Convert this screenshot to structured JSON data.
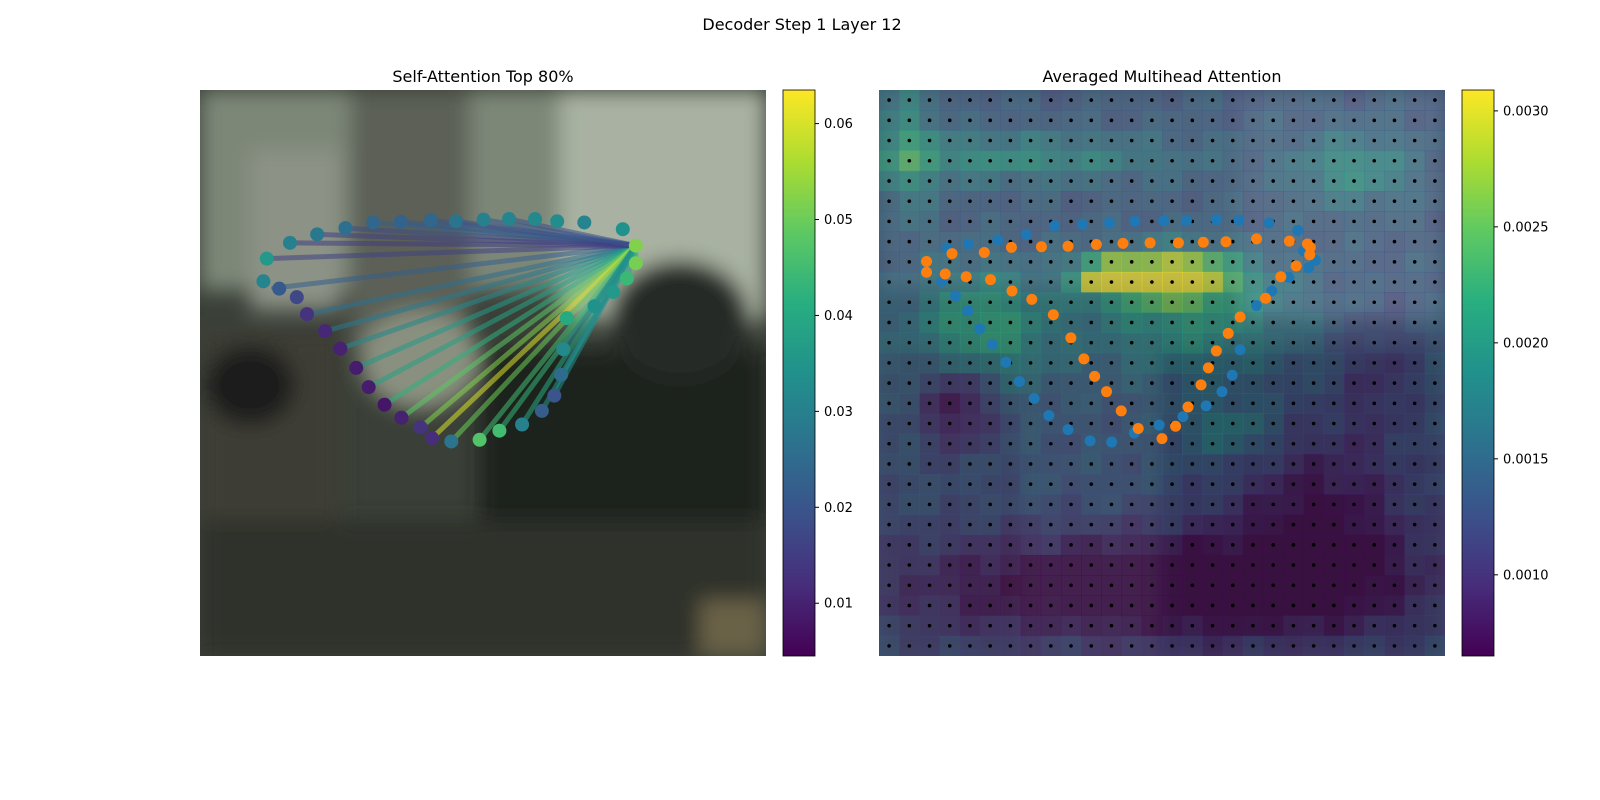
{
  "figure": {
    "title": "Decoder Step 1 Layer 12"
  },
  "chart_data": [
    {
      "type": "scatter",
      "title": "Self-Attention Top 80%",
      "description_of_marks": "contour keypoints colored by attention weight, with lines from the query point to the top-80% attended keypoints",
      "xlim": [
        0,
        1
      ],
      "ylim": [
        0,
        1
      ],
      "colorbar": {
        "ticks": [
          0.01,
          0.02,
          0.03,
          0.04,
          0.05,
          0.06
        ],
        "range": [
          0.0045,
          0.0635
        ],
        "cmap": "viridis"
      },
      "query_point": [
        0.77,
        0.725
      ],
      "points": [
        [
          0.118,
          0.702,
          0.036
        ],
        [
          0.159,
          0.73,
          0.03
        ],
        [
          0.207,
          0.745,
          0.028
        ],
        [
          0.257,
          0.756,
          0.026
        ],
        [
          0.306,
          0.766,
          0.024
        ],
        [
          0.355,
          0.767,
          0.023
        ],
        [
          0.408,
          0.77,
          0.024
        ],
        [
          0.452,
          0.768,
          0.027
        ],
        [
          0.501,
          0.771,
          0.03
        ],
        [
          0.546,
          0.772,
          0.031
        ],
        [
          0.592,
          0.772,
          0.032
        ],
        [
          0.631,
          0.768,
          0.033
        ],
        [
          0.679,
          0.766,
          0.031
        ],
        [
          0.747,
          0.754,
          0.034
        ],
        [
          0.77,
          0.725,
          0.052
        ],
        [
          0.77,
          0.694,
          0.051
        ],
        [
          0.754,
          0.667,
          0.044
        ],
        [
          0.73,
          0.643,
          0.036
        ],
        [
          0.697,
          0.618,
          0.034
        ],
        [
          0.648,
          0.597,
          0.04
        ],
        [
          0.642,
          0.542,
          0.032
        ],
        [
          0.638,
          0.497,
          0.025
        ],
        [
          0.626,
          0.46,
          0.02
        ],
        [
          0.604,
          0.433,
          0.022
        ],
        [
          0.569,
          0.409,
          0.03
        ],
        [
          0.529,
          0.398,
          0.045
        ],
        [
          0.494,
          0.382,
          0.047
        ],
        [
          0.444,
          0.379,
          0.027
        ],
        [
          0.41,
          0.385,
          0.012
        ],
        [
          0.39,
          0.404,
          0.013
        ],
        [
          0.356,
          0.421,
          0.01
        ],
        [
          0.326,
          0.444,
          0.008
        ],
        [
          0.298,
          0.475,
          0.009
        ],
        [
          0.276,
          0.509,
          0.009
        ],
        [
          0.248,
          0.543,
          0.01
        ],
        [
          0.221,
          0.574,
          0.011
        ],
        [
          0.189,
          0.604,
          0.013
        ],
        [
          0.171,
          0.634,
          0.017
        ],
        [
          0.14,
          0.649,
          0.021
        ],
        [
          0.112,
          0.662,
          0.031
        ]
      ],
      "attended_edges": [
        [
          0.13,
          0.65,
          0.022
        ],
        [
          0.189,
          0.604,
          0.026
        ],
        [
          0.221,
          0.574,
          0.028
        ],
        [
          0.248,
          0.543,
          0.032
        ],
        [
          0.276,
          0.509,
          0.036
        ],
        [
          0.298,
          0.475,
          0.038
        ],
        [
          0.326,
          0.444,
          0.042
        ],
        [
          0.356,
          0.421,
          0.048
        ],
        [
          0.39,
          0.404,
          0.052
        ],
        [
          0.41,
          0.385,
          0.06
        ],
        [
          0.444,
          0.379,
          0.05
        ],
        [
          0.494,
          0.382,
          0.045
        ],
        [
          0.529,
          0.398,
          0.043
        ],
        [
          0.569,
          0.409,
          0.04
        ],
        [
          0.604,
          0.433,
          0.036
        ],
        [
          0.626,
          0.46,
          0.034
        ],
        [
          0.638,
          0.497,
          0.032
        ],
        [
          0.642,
          0.542,
          0.03
        ],
        [
          0.697,
          0.618,
          0.034
        ],
        [
          0.73,
          0.643,
          0.036
        ],
        [
          0.754,
          0.667,
          0.038
        ],
        [
          0.77,
          0.694,
          0.04
        ],
        [
          0.306,
          0.766,
          0.022
        ],
        [
          0.355,
          0.767,
          0.021
        ],
        [
          0.408,
          0.77,
          0.02
        ],
        [
          0.452,
          0.768,
          0.019
        ],
        [
          0.257,
          0.756,
          0.018
        ],
        [
          0.207,
          0.745,
          0.016
        ],
        [
          0.159,
          0.73,
          0.015
        ],
        [
          0.118,
          0.702,
          0.016
        ],
        [
          0.501,
          0.771,
          0.02
        ],
        [
          0.546,
          0.772,
          0.019
        ]
      ]
    },
    {
      "type": "heatmap",
      "title": "Averaged Multihead Attention",
      "xlim": [
        0,
        1
      ],
      "ylim": [
        0,
        1
      ],
      "colorbar": {
        "ticks": [
          0.001,
          0.0015,
          0.002,
          0.0025,
          0.003
        ],
        "labels": [
          "0.0010",
          "0.0015",
          "0.0020",
          "0.0025",
          "0.0030"
        ],
        "range": [
          0.00065,
          0.00309
        ],
        "cmap": "viridis"
      },
      "grid": {
        "rows": 28,
        "cols": 28
      },
      "hotspots": [
        [
          0.52,
          0.67,
          0.1,
          0.04,
          0.0021
        ],
        [
          0.4,
          0.67,
          0.05,
          0.03,
          0.0018
        ],
        [
          0.18,
          0.58,
          0.12,
          0.1,
          0.0009
        ],
        [
          0.22,
          0.88,
          0.3,
          0.04,
          0.0006
        ],
        [
          0.84,
          0.86,
          0.1,
          0.06,
          0.0006
        ],
        [
          0.05,
          0.9,
          0.05,
          0.12,
          0.0006
        ],
        [
          0.55,
          0.6,
          0.18,
          0.1,
          0.0007
        ],
        [
          0.5,
          0.12,
          0.45,
          0.1,
          -0.0009
        ],
        [
          0.78,
          0.25,
          0.15,
          0.15,
          -0.0006
        ],
        [
          0.14,
          0.45,
          0.06,
          0.08,
          -0.0007
        ],
        [
          0.88,
          0.5,
          0.06,
          0.1,
          -0.0003
        ],
        [
          0.62,
          0.4,
          0.08,
          0.05,
          0.0005
        ]
      ],
      "base_value": 0.0013,
      "series": [
        {
          "name": "",
          "color": "#1f77b4",
          "points": [
            [
              0.082,
              0.684
            ],
            [
              0.111,
              0.662
            ],
            [
              0.135,
              0.636
            ],
            [
              0.157,
              0.61
            ],
            [
              0.178,
              0.578
            ],
            [
              0.2,
              0.55
            ],
            [
              0.224,
              0.519
            ],
            [
              0.248,
              0.485
            ],
            [
              0.274,
              0.455
            ],
            [
              0.3,
              0.425
            ],
            [
              0.334,
              0.4
            ],
            [
              0.373,
              0.38
            ],
            [
              0.411,
              0.378
            ],
            [
              0.451,
              0.394
            ],
            [
              0.495,
              0.408
            ],
            [
              0.537,
              0.423
            ],
            [
              0.578,
              0.442
            ],
            [
              0.606,
              0.467
            ],
            [
              0.624,
              0.496
            ],
            [
              0.638,
              0.541
            ],
            [
              0.667,
              0.619
            ],
            [
              0.694,
              0.645
            ],
            [
              0.724,
              0.669
            ],
            [
              0.759,
              0.686
            ],
            [
              0.771,
              0.699
            ],
            [
              0.75,
              0.716
            ],
            [
              0.74,
              0.752
            ],
            [
              0.689,
              0.765
            ],
            [
              0.636,
              0.77
            ],
            [
              0.596,
              0.771
            ],
            [
              0.543,
              0.769
            ],
            [
              0.503,
              0.769
            ],
            [
              0.452,
              0.768
            ],
            [
              0.407,
              0.765
            ],
            [
              0.359,
              0.763
            ],
            [
              0.31,
              0.76
            ],
            [
              0.26,
              0.745
            ],
            [
              0.21,
              0.735
            ],
            [
              0.158,
              0.728
            ],
            [
              0.12,
              0.721
            ]
          ]
        },
        {
          "name": "",
          "color": "#ff7f0e",
          "points": [
            [
              0.084,
              0.697
            ],
            [
              0.084,
              0.678
            ],
            [
              0.117,
              0.675
            ],
            [
              0.154,
              0.67
            ],
            [
              0.197,
              0.665
            ],
            [
              0.235,
              0.645
            ],
            [
              0.27,
              0.63
            ],
            [
              0.308,
              0.603
            ],
            [
              0.339,
              0.562
            ],
            [
              0.362,
              0.525
            ],
            [
              0.381,
              0.494
            ],
            [
              0.402,
              0.467
            ],
            [
              0.428,
              0.433
            ],
            [
              0.458,
              0.402
            ],
            [
              0.5,
              0.384
            ],
            [
              0.524,
              0.406
            ],
            [
              0.546,
              0.44
            ],
            [
              0.569,
              0.479
            ],
            [
              0.582,
              0.509
            ],
            [
              0.596,
              0.539
            ],
            [
              0.617,
              0.57
            ],
            [
              0.638,
              0.599
            ],
            [
              0.683,
              0.632
            ],
            [
              0.71,
              0.67
            ],
            [
              0.737,
              0.689
            ],
            [
              0.761,
              0.709
            ],
            [
              0.757,
              0.728
            ],
            [
              0.762,
              0.722
            ],
            [
              0.725,
              0.733
            ],
            [
              0.667,
              0.737
            ],
            [
              0.613,
              0.732
            ],
            [
              0.573,
              0.731
            ],
            [
              0.529,
              0.73
            ],
            [
              0.479,
              0.73
            ],
            [
              0.431,
              0.729
            ],
            [
              0.384,
              0.727
            ],
            [
              0.334,
              0.724
            ],
            [
              0.287,
              0.723
            ],
            [
              0.234,
              0.722
            ],
            [
              0.186,
              0.713
            ],
            [
              0.129,
              0.711
            ]
          ]
        }
      ]
    }
  ]
}
